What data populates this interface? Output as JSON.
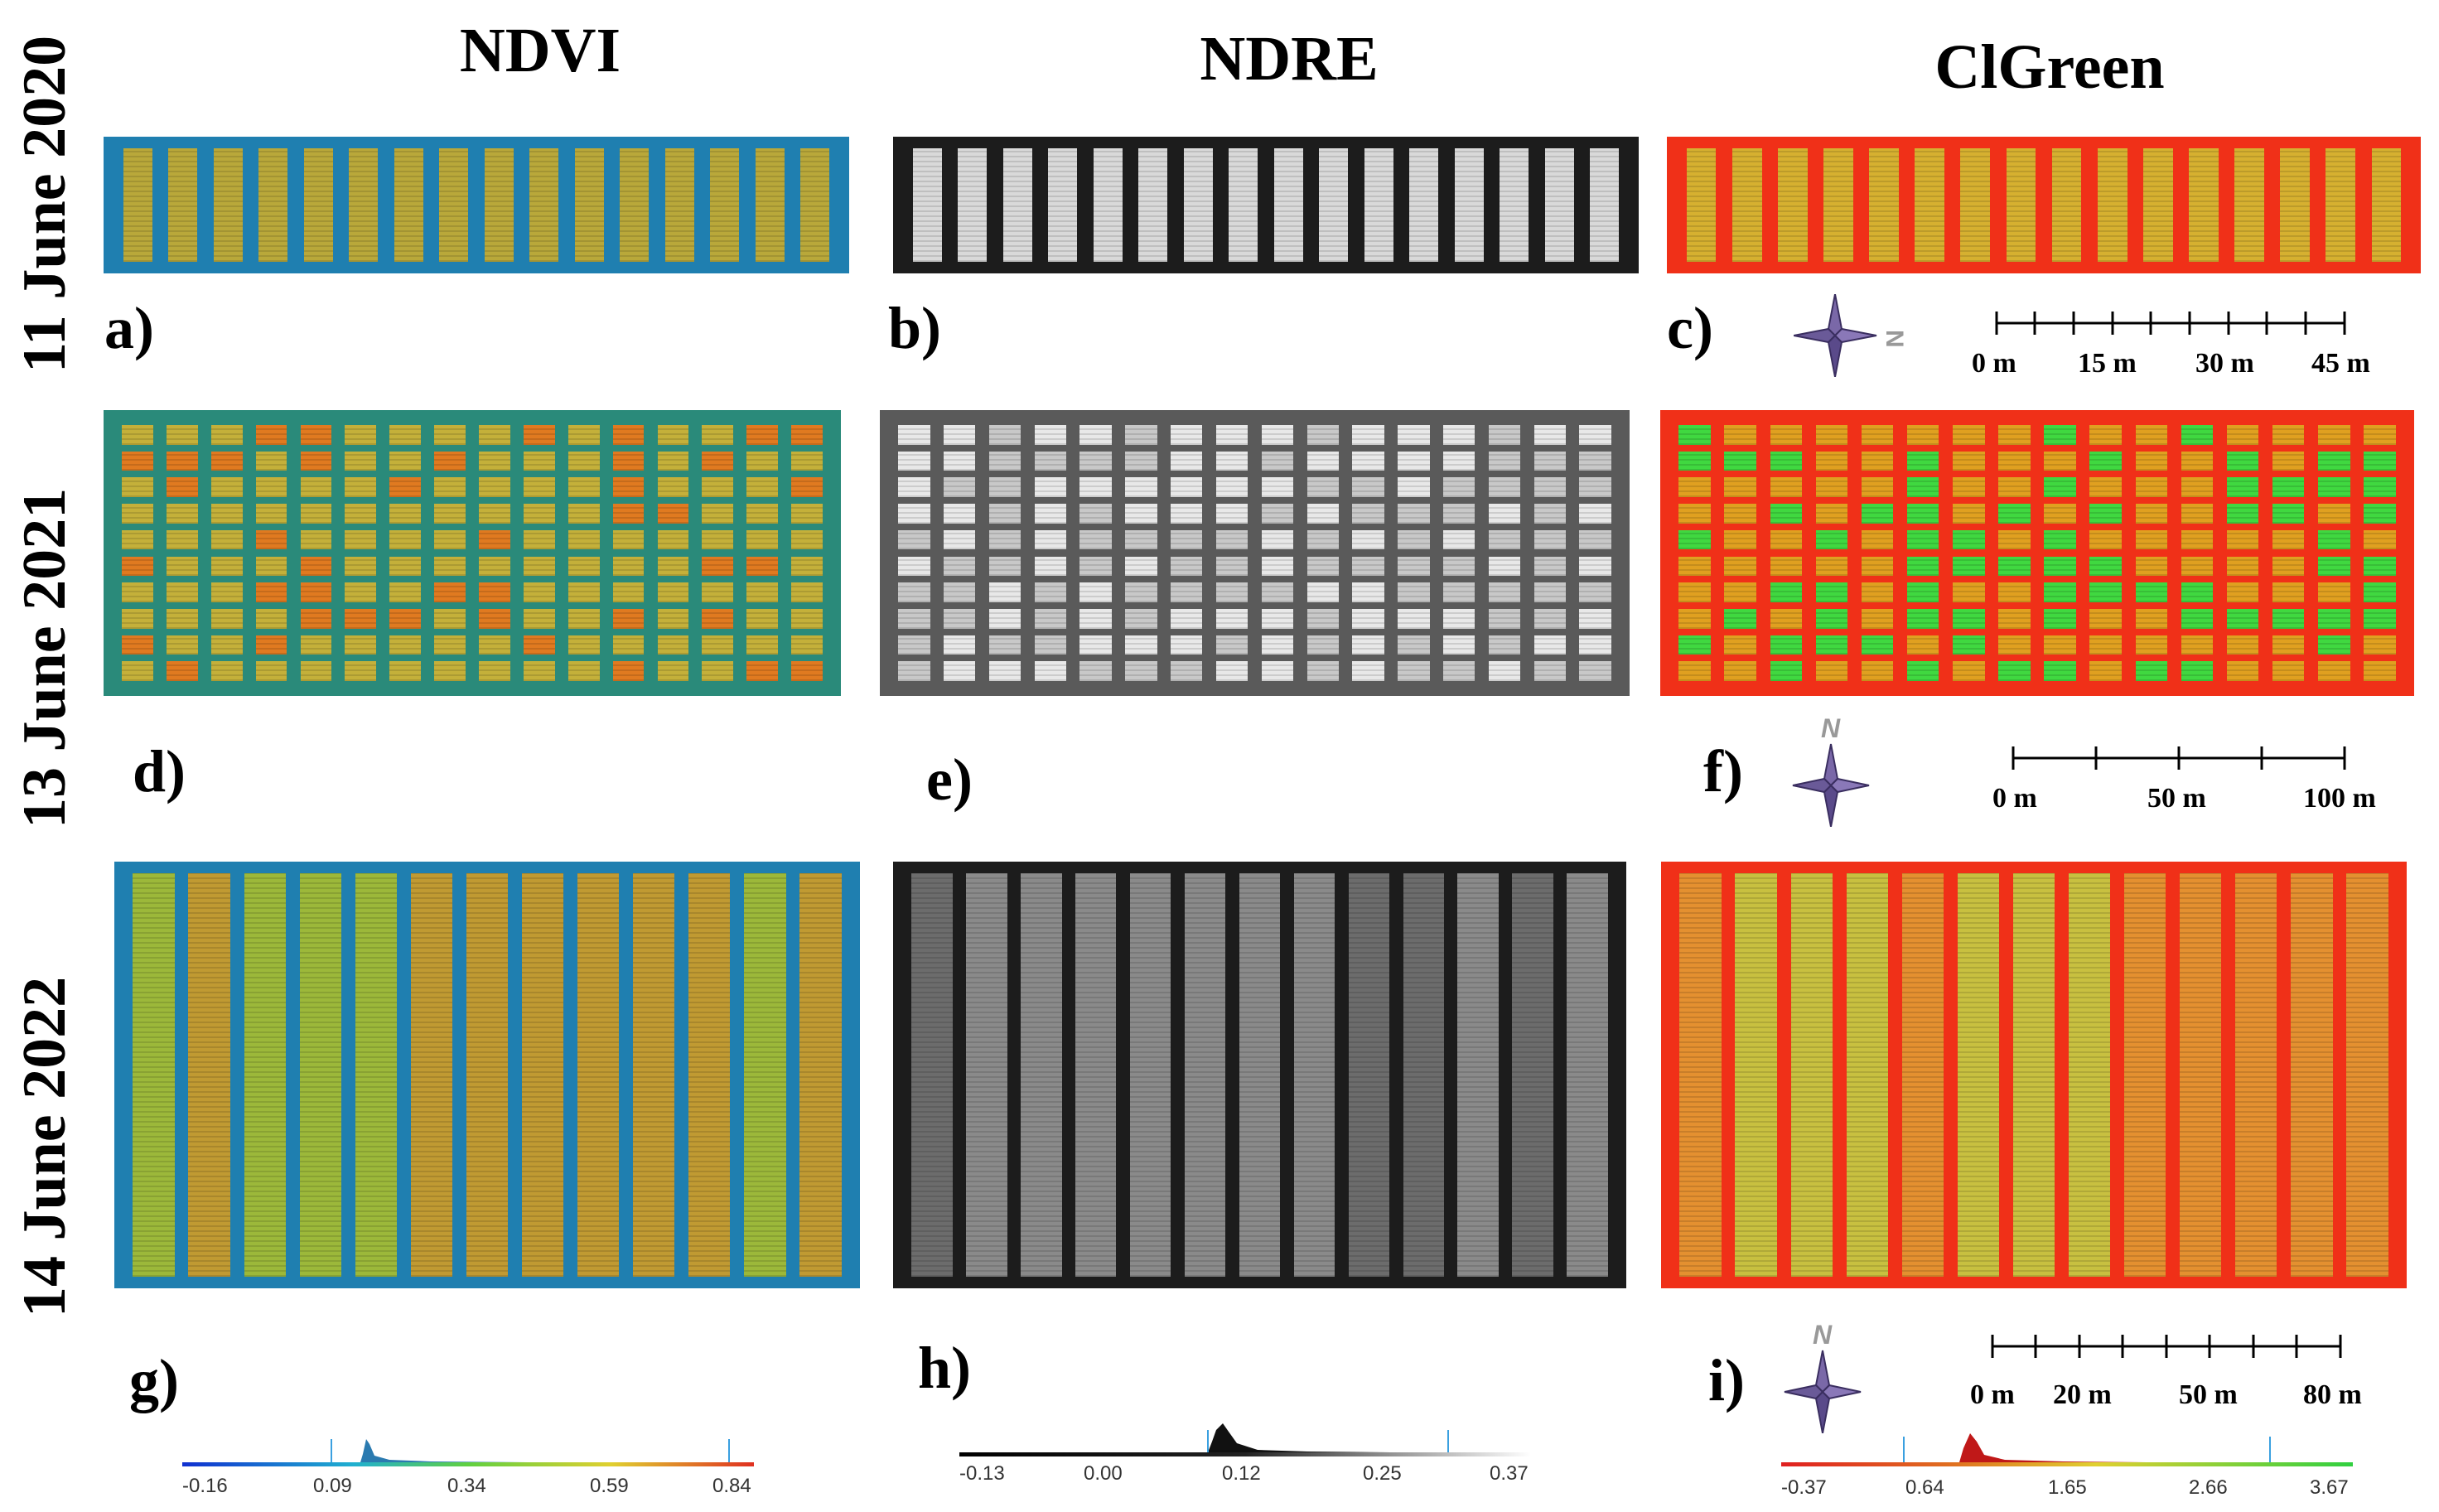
{
  "columns": {
    "ndvi": "NDVI",
    "ndre": "NDRE",
    "clgreen": "ClGreen"
  },
  "rows": {
    "r2020": "11 June 2020",
    "r2021": "13 June 2021",
    "r2022": "14 June 2022"
  },
  "panels": {
    "a": "a)",
    "b": "b)",
    "c": "c)",
    "d": "d)",
    "e": "e)",
    "f": "f)",
    "g": "g)",
    "h": "h)",
    "i": "i)"
  },
  "compass": {
    "north_letter": "N"
  },
  "scalebars": {
    "s2020": [
      "0 m",
      "15 m",
      "30 m",
      "45 m"
    ],
    "s2021": [
      "0 m",
      "50 m",
      "100 m"
    ],
    "s2022": [
      "0 m",
      "20 m",
      "50 m",
      "80 m"
    ]
  },
  "legends": {
    "ndvi": [
      "-0.16",
      "0.09",
      "0.34",
      "0.59",
      "0.84"
    ],
    "ndre": [
      "-0.13",
      "0.00",
      "0.12",
      "0.25",
      "0.37"
    ],
    "clgreen": [
      "-0.37",
      "0.64",
      "1.65",
      "2.66",
      "3.67"
    ]
  },
  "colors": {
    "ndvi_bg": "#1f7fb0",
    "ndvi_bg_2021": "#2a8a7a",
    "ndvi_plot": "#b9a83a",
    "ndre_bg": "#202020",
    "ndre_plot": "#d9d9d9",
    "clgreen_bg": "#f03018",
    "clgreen_plot": "#d6b030",
    "compass": "#5a4a8a"
  }
}
